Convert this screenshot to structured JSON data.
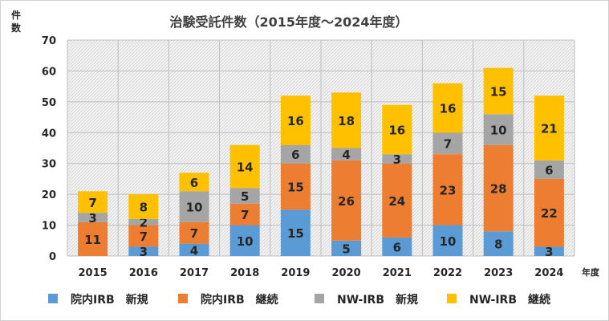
{
  "chart_data": {
    "type": "bar",
    "stacked": true,
    "title": "治験受託件数（2015年度～2024年度）",
    "ylabel": "件数",
    "xlabel": "年度",
    "ylim": [
      0,
      70
    ],
    "yticks": [
      0,
      10,
      20,
      30,
      40,
      50,
      60,
      70
    ],
    "grid": true,
    "legend": "bottom",
    "categories": [
      "2015",
      "2016",
      "2017",
      "2018",
      "2019",
      "2020",
      "2021",
      "2022",
      "2023",
      "2024"
    ],
    "series": [
      {
        "name": "院内IRB　新規",
        "color": "#5b9bd5",
        "values": [
          0,
          3,
          4,
          10,
          15,
          5,
          6,
          10,
          8,
          3
        ]
      },
      {
        "name": "院内IRB　継続",
        "color": "#ed7d31",
        "values": [
          11,
          7,
          7,
          7,
          15,
          26,
          24,
          23,
          28,
          22
        ]
      },
      {
        "name": "NW-IRB　新規",
        "color": "#a5a5a5",
        "values": [
          3,
          2,
          10,
          5,
          6,
          4,
          3,
          7,
          10,
          6
        ]
      },
      {
        "name": "NW-IRB　継続",
        "color": "#ffc000",
        "values": [
          7,
          8,
          6,
          14,
          16,
          18,
          16,
          16,
          15,
          21
        ]
      }
    ]
  }
}
